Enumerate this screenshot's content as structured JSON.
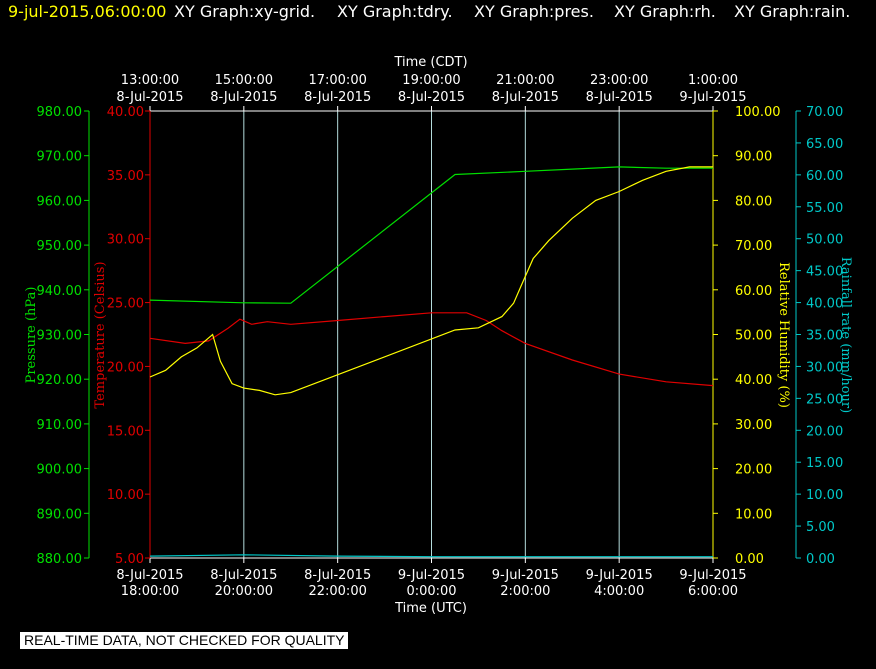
{
  "header": {
    "timestamp": "9-jul-2015,06:00:00",
    "titles": [
      "XY Graph:xy-grid.",
      "XY Graph:tdry.",
      "XY Graph:pres.",
      "XY Graph:rh.",
      "XY Graph:rain."
    ]
  },
  "disclaimer": "REAL-TIME DATA, NOT CHECKED FOR QUALITY",
  "colors": {
    "background": "#000000",
    "frame": "#ffffff",
    "grid": "#b4dcdc",
    "timestamp": "#ffff00",
    "title_text": "#ffffff",
    "pressure": "#00e000",
    "temperature": "#e00000",
    "humidity": "#ffff00",
    "rain": "#00c8c8"
  },
  "chart_data": {
    "type": "line",
    "x_top": {
      "label": "Time (CDT)",
      "ticks": [
        {
          "time": "13:00:00",
          "date": "8-Jul-2015"
        },
        {
          "time": "15:00:00",
          "date": "8-Jul-2015"
        },
        {
          "time": "17:00:00",
          "date": "8-Jul-2015"
        },
        {
          "time": "19:00:00",
          "date": "8-Jul-2015"
        },
        {
          "time": "21:00:00",
          "date": "8-Jul-2015"
        },
        {
          "time": "23:00:00",
          "date": "8-Jul-2015"
        },
        {
          "time": "1:00:00",
          "date": "9-Jul-2015"
        }
      ]
    },
    "x_bottom": {
      "label": "Time (UTC)",
      "range": [
        "2015-07-08 18:00",
        "2015-07-09 06:00"
      ],
      "ticks": [
        {
          "date": "8-Jul-2015",
          "time": "18:00:00"
        },
        {
          "date": "8-Jul-2015",
          "time": "20:00:00"
        },
        {
          "date": "8-Jul-2015",
          "time": "22:00:00"
        },
        {
          "date": "9-Jul-2015",
          "time": "0:00:00"
        },
        {
          "date": "9-Jul-2015",
          "time": "2:00:00"
        },
        {
          "date": "9-Jul-2015",
          "time": "4:00:00"
        },
        {
          "date": "9-Jul-2015",
          "time": "6:00:00"
        }
      ]
    },
    "axes": {
      "pressure": {
        "label": "Pressure (hPa)",
        "ylim": [
          880,
          980
        ],
        "ticks": [
          "880.00",
          "890.00",
          "900.00",
          "910.00",
          "920.00",
          "930.00",
          "940.00",
          "950.00",
          "960.00",
          "970.00",
          "980.00"
        ]
      },
      "temperature": {
        "label": "Temperature (Celsius)",
        "ylim": [
          5,
          40
        ],
        "ticks": [
          "5.00",
          "10.00",
          "15.00",
          "20.00",
          "25.00",
          "30.00",
          "35.00",
          "40.00"
        ]
      },
      "humidity": {
        "label": "Relative Humidity (%)",
        "ylim": [
          0,
          100
        ],
        "ticks": [
          "0.00",
          "10.00",
          "20.00",
          "30.00",
          "40.00",
          "50.00",
          "60.00",
          "70.00",
          "80.00",
          "90.00",
          "100.00"
        ]
      },
      "rain": {
        "label": "Rainfall rate (mm/hour)",
        "ylim": [
          0,
          70
        ],
        "ticks": [
          "0.00",
          "5.00",
          "10.00",
          "15.00",
          "20.00",
          "25.00",
          "30.00",
          "35.00",
          "40.00",
          "45.00",
          "50.00",
          "55.00",
          "60.00",
          "65.00",
          "70.00"
        ]
      }
    },
    "grid": true,
    "series": [
      {
        "key": "pressure",
        "axis": "pressure",
        "points": [
          [
            "2015-07-08 18:00",
            937.7
          ],
          [
            "2015-07-08 20:00",
            937.1
          ],
          [
            "2015-07-08 21:00",
            937.0
          ],
          [
            "2015-07-09 00:30",
            965.8
          ],
          [
            "2015-07-09 02:00",
            966.5
          ],
          [
            "2015-07-09 03:00",
            967.0
          ],
          [
            "2015-07-09 04:00",
            967.5
          ],
          [
            "2015-07-09 05:00",
            967.2
          ],
          [
            "2015-07-09 06:00",
            967.2
          ]
        ]
      },
      {
        "key": "temperature",
        "axis": "temperature",
        "points": [
          [
            "2015-07-08 18:00",
            22.2
          ],
          [
            "2015-07-08 18:45",
            21.8
          ],
          [
            "2015-07-08 19:15",
            22.0
          ],
          [
            "2015-07-08 19:40",
            23.0
          ],
          [
            "2015-07-08 19:55",
            23.7
          ],
          [
            "2015-07-08 20:10",
            23.3
          ],
          [
            "2015-07-08 20:30",
            23.5
          ],
          [
            "2015-07-08 21:00",
            23.3
          ],
          [
            "2015-07-08 22:00",
            23.6
          ],
          [
            "2015-07-08 23:00",
            23.9
          ],
          [
            "2015-07-09 00:00",
            24.2
          ],
          [
            "2015-07-09 00:45",
            24.2
          ],
          [
            "2015-07-09 01:10",
            23.6
          ],
          [
            "2015-07-09 01:30",
            22.8
          ],
          [
            "2015-07-09 02:00",
            21.8
          ],
          [
            "2015-07-09 03:00",
            20.5
          ],
          [
            "2015-07-09 04:00",
            19.4
          ],
          [
            "2015-07-09 05:00",
            18.8
          ],
          [
            "2015-07-09 06:00",
            18.5
          ]
        ]
      },
      {
        "key": "humidity",
        "axis": "humidity",
        "points": [
          [
            "2015-07-08 18:00",
            40.5
          ],
          [
            "2015-07-08 18:20",
            42.0
          ],
          [
            "2015-07-08 18:40",
            45.0
          ],
          [
            "2015-07-08 19:00",
            47.0
          ],
          [
            "2015-07-08 19:20",
            50.0
          ],
          [
            "2015-07-08 19:30",
            44.0
          ],
          [
            "2015-07-08 19:45",
            39.0
          ],
          [
            "2015-07-08 20:00",
            38.0
          ],
          [
            "2015-07-08 20:20",
            37.5
          ],
          [
            "2015-07-08 20:40",
            36.5
          ],
          [
            "2015-07-08 21:00",
            37.0
          ],
          [
            "2015-07-09 00:30",
            51.0
          ],
          [
            "2015-07-09 01:00",
            51.5
          ],
          [
            "2015-07-09 01:30",
            54.0
          ],
          [
            "2015-07-09 01:45",
            57.0
          ],
          [
            "2015-07-09 01:55",
            61.0
          ],
          [
            "2015-07-09 02:10",
            67.0
          ],
          [
            "2015-07-09 02:30",
            71.0
          ],
          [
            "2015-07-09 03:00",
            76.0
          ],
          [
            "2015-07-09 03:30",
            80.0
          ],
          [
            "2015-07-09 04:00",
            82.0
          ],
          [
            "2015-07-09 04:30",
            84.5
          ],
          [
            "2015-07-09 05:00",
            86.5
          ],
          [
            "2015-07-09 05:30",
            87.5
          ],
          [
            "2015-07-09 06:00",
            87.5
          ]
        ]
      },
      {
        "key": "rain",
        "axis": "rain",
        "points": [
          [
            "2015-07-08 18:00",
            0.3
          ],
          [
            "2015-07-08 20:00",
            0.5
          ],
          [
            "2015-07-08 22:00",
            0.3
          ],
          [
            "2015-07-09 00:00",
            0.2
          ],
          [
            "2015-07-09 02:00",
            0.2
          ],
          [
            "2015-07-09 04:00",
            0.2
          ],
          [
            "2015-07-09 06:00",
            0.2
          ]
        ]
      }
    ]
  }
}
